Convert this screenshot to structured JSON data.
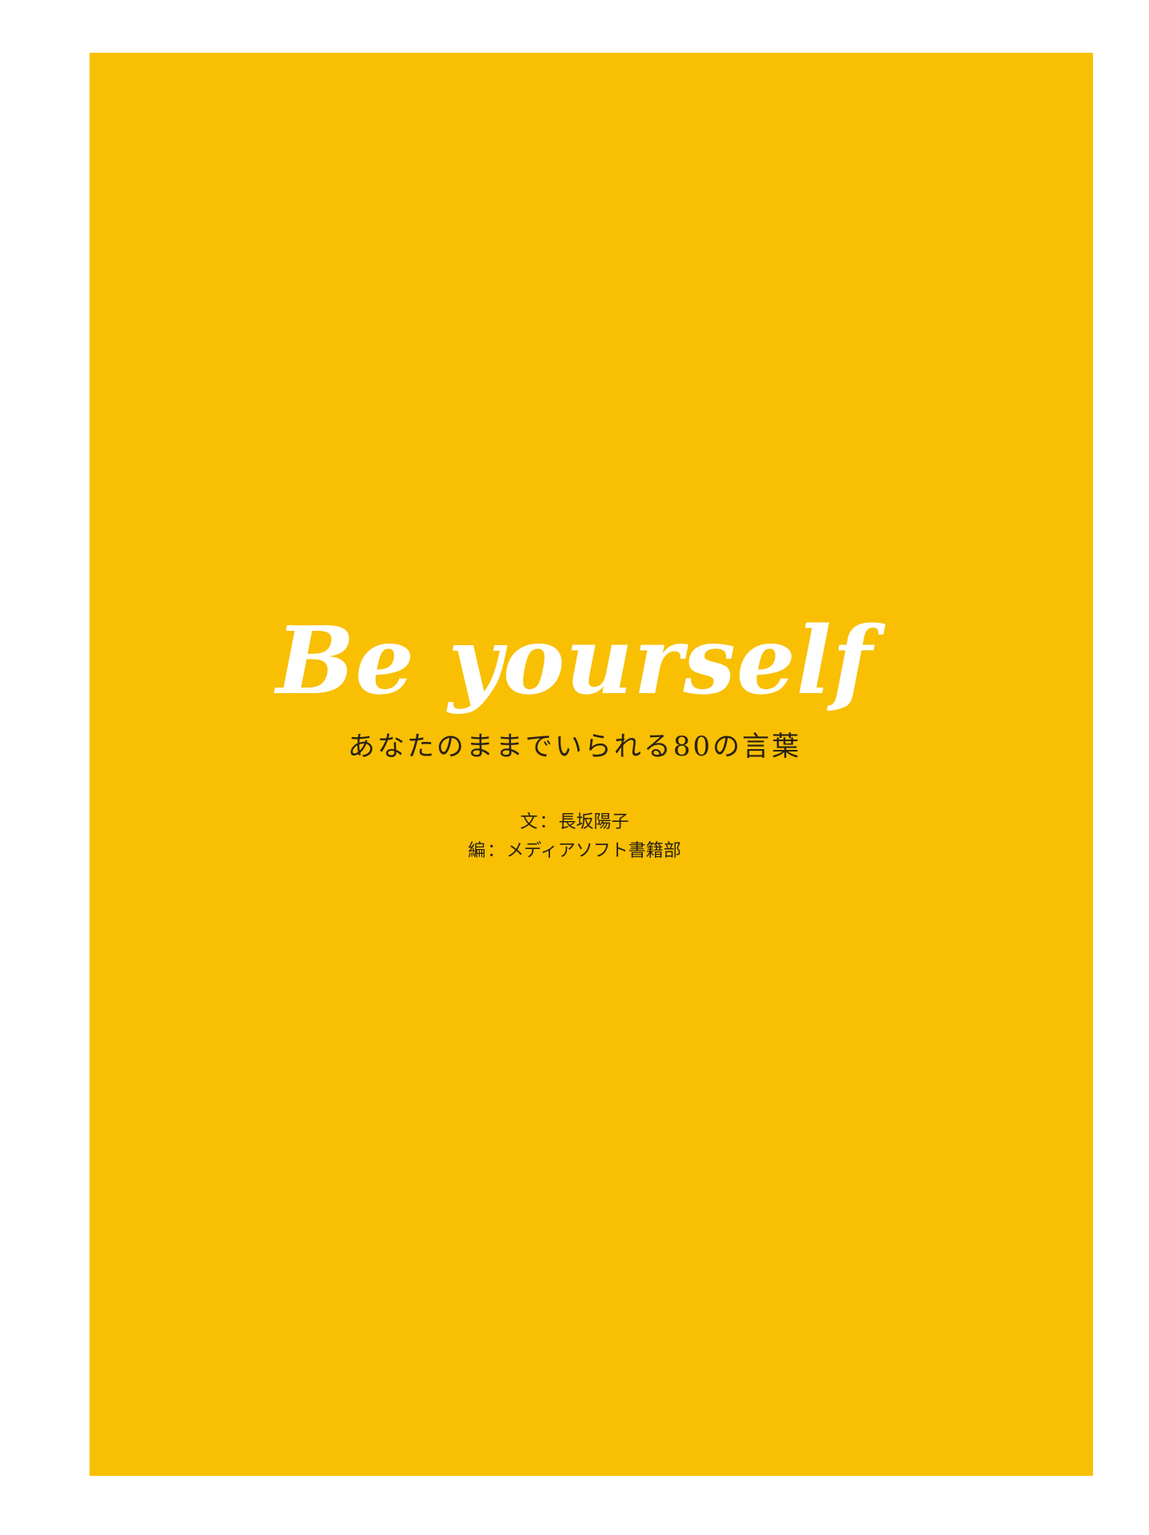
{
  "cover": {
    "background_color": "#f8bf03",
    "title": "Be yourself",
    "subtitle": "あなたのままでいられる80の言葉",
    "author_label": "文",
    "author_name": "長坂陽子",
    "editor_label": "編",
    "editor_name": "メディアソフト書籍部",
    "separator": "："
  }
}
